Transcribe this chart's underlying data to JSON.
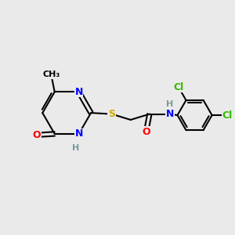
{
  "background_color": "#eaeaea",
  "atom_colors": {
    "C": "#000000",
    "N": "#0000ff",
    "O": "#ff0000",
    "S": "#ccaa00",
    "Cl": "#33bb00",
    "H": "#7a9a9a"
  },
  "bond_color": "#000000",
  "bond_width": 1.5,
  "font_size_atom": 9,
  "font_size_small": 8,
  "figsize": [
    3.0,
    3.0
  ],
  "dpi": 100
}
